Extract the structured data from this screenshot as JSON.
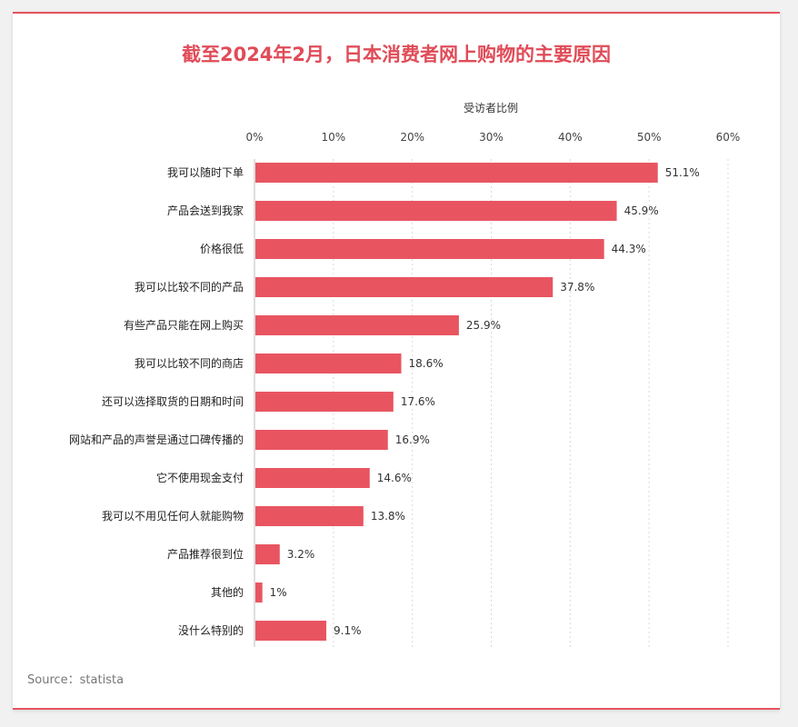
{
  "page": {
    "title": "截至2024年2月，日本消费者网上购物的主要原因",
    "source": "Source：statista"
  },
  "chart_data": {
    "type": "bar",
    "orientation": "horizontal",
    "title": "截至2024年2月，日本消费者网上购物的主要原因",
    "xlabel": "受访者比例",
    "ylabel": "",
    "xlim": [
      0,
      60
    ],
    "ticks": [
      "0%",
      "10%",
      "20%",
      "30%",
      "40%",
      "50%",
      "60%"
    ],
    "tick_values": [
      0,
      10,
      20,
      30,
      40,
      50,
      60
    ],
    "grid": true,
    "color": "#e85561",
    "categories": [
      "我可以随时下单",
      "产品会送到我家",
      "价格很低",
      "我可以比较不同的产品",
      "有些产品只能在网上购买",
      "我可以比较不同的商店",
      "还可以选择取货的日期和时间",
      "网站和产品的声誉是通过口碑传播的",
      "它不使用现金支付",
      "我可以不用见任何人就能购物",
      "产品推荐很到位",
      "其他的",
      "没什么特别的"
    ],
    "values": [
      51.1,
      45.9,
      44.3,
      37.8,
      25.9,
      18.6,
      17.6,
      16.9,
      14.6,
      13.8,
      3.2,
      1,
      9.1
    ],
    "value_labels": [
      "51.1%",
      "45.9%",
      "44.3%",
      "37.8%",
      "25.9%",
      "18.6%",
      "17.6%",
      "16.9%",
      "14.6%",
      "13.8%",
      "3.2%",
      "1%",
      "9.1%"
    ]
  }
}
